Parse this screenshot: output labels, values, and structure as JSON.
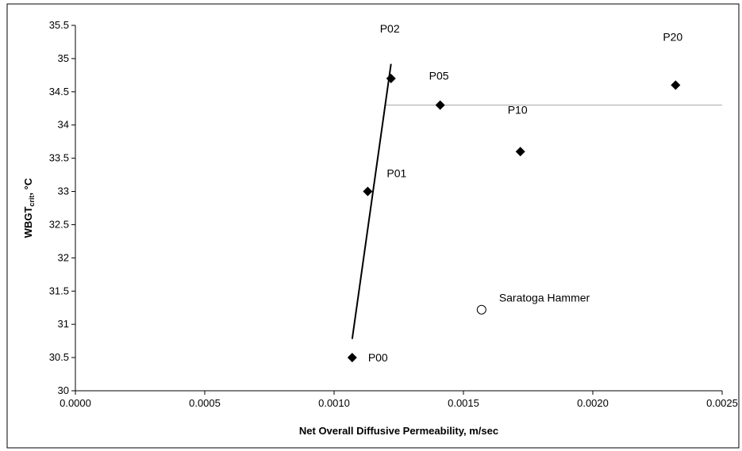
{
  "chart_data": {
    "type": "scatter",
    "title": "",
    "xlabel": "Net Overall Diffusive Permeability, m/sec",
    "ylabel_main": "WBGT",
    "ylabel_sub": "crit",
    "ylabel_unit": ", °C",
    "xlim": [
      0,
      0.0025
    ],
    "ylim": [
      30,
      35.5
    ],
    "x_ticks": [
      "0.0000",
      "0.0005",
      "0.0010",
      "0.0015",
      "0.0020",
      "0.0025"
    ],
    "y_ticks": [
      "30",
      "30.5",
      "31",
      "31.5",
      "32",
      "32.5",
      "33",
      "33.5",
      "34",
      "34.5",
      "35",
      "35.5"
    ],
    "grid": false,
    "series": [
      {
        "marker": "diamond",
        "color": "#000000",
        "points": [
          {
            "label": "P00",
            "x": 0.00107,
            "y": 30.5
          },
          {
            "label": "P01",
            "x": 0.00113,
            "y": 33.0
          },
          {
            "label": "P02",
            "x": 0.00122,
            "y": 34.7
          },
          {
            "label": "P05",
            "x": 0.00141,
            "y": 34.3
          },
          {
            "label": "P10",
            "x": 0.00172,
            "y": 33.6
          },
          {
            "label": "P20",
            "x": 0.00232,
            "y": 34.6
          }
        ]
      },
      {
        "marker": "circle-open",
        "color": "#000000",
        "points": [
          {
            "label": "Saratoga Hammer",
            "x": 0.00157,
            "y": 31.22
          }
        ]
      }
    ],
    "trend_line": {
      "x": [
        0.00107,
        0.00122
      ],
      "y": [
        30.78,
        34.92
      ],
      "color": "#000000"
    },
    "plateau_line": {
      "x": [
        0.0012,
        0.0025
      ],
      "y": 34.3,
      "color": "#a6a6a6"
    }
  }
}
